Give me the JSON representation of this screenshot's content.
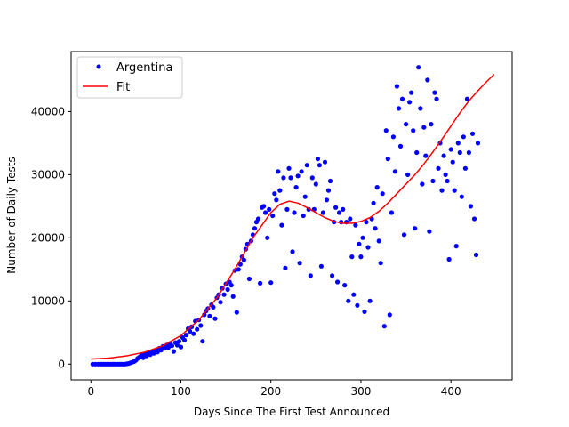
{
  "chart_data": {
    "type": "scatter",
    "title": "",
    "xlabel": "Days Since The First Test Announced",
    "ylabel": "Number of Daily Tests",
    "xlim": [
      -22,
      468
    ],
    "ylim": [
      -2500,
      49500
    ],
    "xticks": [
      0,
      100,
      200,
      300,
      400
    ],
    "yticks": [
      0,
      10000,
      20000,
      30000,
      40000
    ],
    "grid": false,
    "legend_position": "top-left",
    "colors": {
      "points": "#0000ff",
      "fit": "#ff0000",
      "axes": "#000000"
    },
    "series": [
      {
        "name": "Argentina",
        "kind": "scatter",
        "points": [
          [
            2,
            0
          ],
          [
            5,
            0
          ],
          [
            8,
            0
          ],
          [
            10,
            0
          ],
          [
            12,
            0
          ],
          [
            14,
            0
          ],
          [
            16,
            0
          ],
          [
            18,
            0
          ],
          [
            20,
            0
          ],
          [
            22,
            0
          ],
          [
            24,
            0
          ],
          [
            26,
            0
          ],
          [
            28,
            0
          ],
          [
            30,
            0
          ],
          [
            32,
            0
          ],
          [
            34,
            0
          ],
          [
            36,
            0
          ],
          [
            38,
            0
          ],
          [
            40,
            50
          ],
          [
            42,
            100
          ],
          [
            44,
            200
          ],
          [
            46,
            300
          ],
          [
            48,
            400
          ],
          [
            50,
            600
          ],
          [
            52,
            900
          ],
          [
            54,
            1100
          ],
          [
            56,
            1400
          ],
          [
            58,
            1000
          ],
          [
            60,
            1600
          ],
          [
            62,
            1300
          ],
          [
            64,
            1800
          ],
          [
            66,
            1500
          ],
          [
            68,
            2000
          ],
          [
            70,
            1700
          ],
          [
            72,
            2200
          ],
          [
            74,
            1900
          ],
          [
            76,
            2500
          ],
          [
            78,
            2200
          ],
          [
            80,
            2800
          ],
          [
            82,
            2500
          ],
          [
            84,
            3000
          ],
          [
            86,
            2600
          ],
          [
            88,
            3200
          ],
          [
            90,
            2900
          ],
          [
            92,
            2000
          ],
          [
            94,
            3400
          ],
          [
            96,
            3000
          ],
          [
            98,
            3600
          ],
          [
            100,
            2700
          ],
          [
            102,
            4200
          ],
          [
            104,
            3800
          ],
          [
            106,
            4600
          ],
          [
            108,
            5600
          ],
          [
            110,
            5200
          ],
          [
            112,
            5900
          ],
          [
            114,
            4800
          ],
          [
            116,
            6800
          ],
          [
            118,
            5500
          ],
          [
            120,
            7000
          ],
          [
            122,
            6100
          ],
          [
            124,
            3600
          ],
          [
            126,
            7800
          ],
          [
            128,
            8400
          ],
          [
            130,
            8800
          ],
          [
            132,
            7600
          ],
          [
            134,
            9400
          ],
          [
            136,
            9000
          ],
          [
            138,
            7200
          ],
          [
            140,
            10500
          ],
          [
            142,
            11000
          ],
          [
            144,
            9800
          ],
          [
            146,
            12000
          ],
          [
            148,
            11000
          ],
          [
            150,
            12700
          ],
          [
            152,
            11800
          ],
          [
            154,
            13000
          ],
          [
            156,
            12500
          ],
          [
            158,
            10700
          ],
          [
            160,
            14800
          ],
          [
            162,
            8200
          ],
          [
            164,
            15000
          ],
          [
            166,
            15800
          ],
          [
            168,
            17000
          ],
          [
            170,
            16500
          ],
          [
            172,
            18200
          ],
          [
            174,
            19000
          ],
          [
            176,
            13500
          ],
          [
            178,
            19500
          ],
          [
            180,
            20500
          ],
          [
            182,
            21500
          ],
          [
            184,
            22500
          ],
          [
            186,
            23000
          ],
          [
            188,
            12800
          ],
          [
            190,
            24800
          ],
          [
            192,
            25000
          ],
          [
            194,
            24000
          ],
          [
            196,
            20000
          ],
          [
            198,
            24500
          ],
          [
            200,
            12900
          ],
          [
            202,
            23500
          ],
          [
            204,
            27000
          ],
          [
            206,
            26000
          ],
          [
            208,
            30500
          ],
          [
            210,
            27500
          ],
          [
            212,
            22000
          ],
          [
            214,
            29500
          ],
          [
            216,
            15200
          ],
          [
            218,
            24500
          ],
          [
            220,
            31000
          ],
          [
            222,
            29500
          ],
          [
            224,
            17800
          ],
          [
            226,
            24000
          ],
          [
            228,
            28000
          ],
          [
            230,
            29800
          ],
          [
            232,
            16000
          ],
          [
            234,
            30500
          ],
          [
            236,
            23500
          ],
          [
            238,
            26500
          ],
          [
            240,
            31500
          ],
          [
            242,
            24500
          ],
          [
            244,
            14000
          ],
          [
            246,
            29500
          ],
          [
            248,
            24500
          ],
          [
            250,
            28500
          ],
          [
            252,
            32500
          ],
          [
            254,
            31500
          ],
          [
            256,
            15500
          ],
          [
            258,
            24000
          ],
          [
            260,
            32000
          ],
          [
            262,
            26000
          ],
          [
            264,
            27500
          ],
          [
            266,
            29000
          ],
          [
            268,
            14000
          ],
          [
            270,
            22500
          ],
          [
            272,
            24800
          ],
          [
            274,
            13000
          ],
          [
            276,
            24000
          ],
          [
            278,
            22500
          ],
          [
            280,
            24500
          ],
          [
            282,
            12500
          ],
          [
            284,
            22500
          ],
          [
            286,
            10000
          ],
          [
            288,
            23000
          ],
          [
            290,
            17000
          ],
          [
            292,
            11000
          ],
          [
            294,
            22000
          ],
          [
            296,
            9300
          ],
          [
            298,
            19000
          ],
          [
            300,
            17000
          ],
          [
            302,
            20000
          ],
          [
            304,
            8300
          ],
          [
            306,
            22500
          ],
          [
            308,
            18500
          ],
          [
            310,
            10000
          ],
          [
            312,
            23000
          ],
          [
            314,
            25500
          ],
          [
            316,
            21500
          ],
          [
            318,
            28000
          ],
          [
            320,
            19500
          ],
          [
            322,
            16000
          ],
          [
            324,
            27000
          ],
          [
            326,
            6000
          ],
          [
            328,
            37000
          ],
          [
            330,
            32500
          ],
          [
            332,
            7800
          ],
          [
            334,
            24000
          ],
          [
            336,
            36000
          ],
          [
            338,
            30500
          ],
          [
            340,
            44000
          ],
          [
            342,
            40500
          ],
          [
            344,
            34500
          ],
          [
            346,
            42000
          ],
          [
            348,
            20500
          ],
          [
            350,
            38000
          ],
          [
            352,
            30000
          ],
          [
            354,
            41500
          ],
          [
            356,
            43000
          ],
          [
            358,
            37000
          ],
          [
            360,
            21500
          ],
          [
            362,
            33500
          ],
          [
            364,
            47000
          ],
          [
            366,
            40500
          ],
          [
            368,
            28500
          ],
          [
            370,
            37500
          ],
          [
            372,
            33000
          ],
          [
            374,
            45000
          ],
          [
            376,
            21000
          ],
          [
            378,
            38000
          ],
          [
            380,
            29000
          ],
          [
            382,
            43000
          ],
          [
            384,
            42000
          ],
          [
            386,
            31000
          ],
          [
            388,
            35000
          ],
          [
            390,
            27500
          ],
          [
            392,
            33000
          ],
          [
            394,
            30000
          ],
          [
            396,
            29000
          ],
          [
            398,
            16600
          ],
          [
            400,
            34000
          ],
          [
            402,
            32000
          ],
          [
            404,
            27500
          ],
          [
            406,
            18700
          ],
          [
            408,
            35000
          ],
          [
            410,
            33500
          ],
          [
            412,
            26500
          ],
          [
            414,
            36000
          ],
          [
            416,
            31000
          ],
          [
            418,
            42000
          ],
          [
            420,
            33500
          ],
          [
            422,
            25000
          ],
          [
            424,
            36500
          ],
          [
            426,
            23000
          ],
          [
            428,
            17300
          ],
          [
            430,
            35000
          ]
        ]
      },
      {
        "name": "Fit",
        "kind": "line",
        "points": [
          [
            0,
            800
          ],
          [
            20,
            950
          ],
          [
            40,
            1300
          ],
          [
            60,
            1900
          ],
          [
            80,
            2900
          ],
          [
            100,
            4500
          ],
          [
            120,
            7000
          ],
          [
            140,
            10500
          ],
          [
            160,
            15000
          ],
          [
            180,
            20000
          ],
          [
            200,
            24000
          ],
          [
            210,
            25300
          ],
          [
            220,
            25800
          ],
          [
            230,
            25500
          ],
          [
            240,
            24800
          ],
          [
            250,
            24000
          ],
          [
            260,
            23200
          ],
          [
            270,
            22600
          ],
          [
            280,
            22300
          ],
          [
            290,
            22300
          ],
          [
            300,
            22600
          ],
          [
            310,
            23200
          ],
          [
            320,
            24200
          ],
          [
            330,
            25500
          ],
          [
            340,
            27000
          ],
          [
            350,
            28500
          ],
          [
            360,
            30000
          ],
          [
            370,
            31700
          ],
          [
            380,
            33600
          ],
          [
            390,
            35600
          ],
          [
            400,
            37700
          ],
          [
            410,
            39800
          ],
          [
            420,
            41700
          ],
          [
            430,
            43300
          ],
          [
            440,
            44800
          ],
          [
            448,
            45900
          ]
        ]
      }
    ]
  }
}
